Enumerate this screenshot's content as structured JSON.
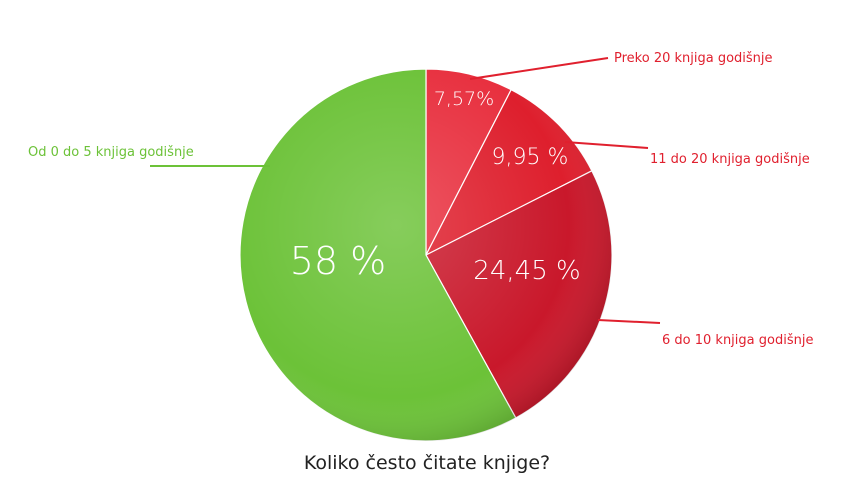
{
  "chart_data": {
    "type": "pie",
    "title": "Koliko često čitate knjige?",
    "slices": [
      {
        "label": "Preko 20 knjiga godišnje",
        "value": 7.57,
        "value_label": "7,57%",
        "color": "#e8303f",
        "label_color": "#e0202e"
      },
      {
        "label": "11 do 20 knjiga godišnje",
        "value": 9.95,
        "value_label": "9,95 %",
        "color": "#de1f2d",
        "label_color": "#e0202e"
      },
      {
        "label": "6 do 10 knjiga godišnje",
        "value": 24.45,
        "value_label": "24,45 %",
        "color": "#c9182b",
        "label_color": "#e0202e"
      },
      {
        "label": "Od 0 do 5 knjiga godišnje",
        "value": 58,
        "value_label": "58 %",
        "color": "#6cc238",
        "label_color": "#6cc238"
      }
    ]
  }
}
